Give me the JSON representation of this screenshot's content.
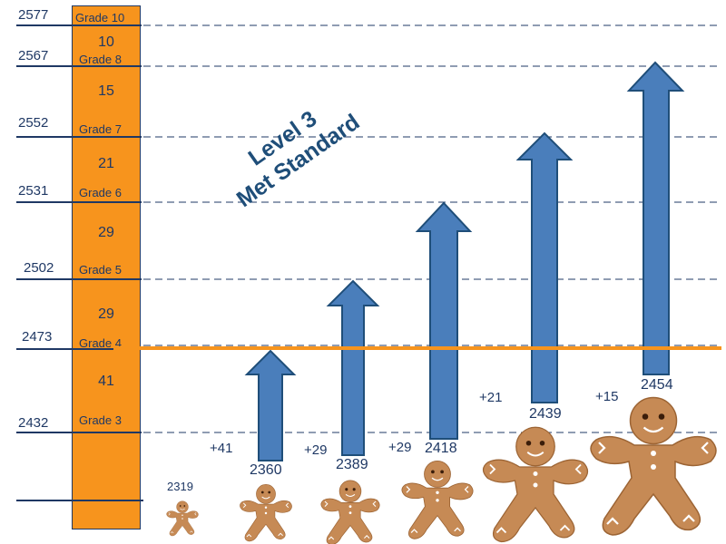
{
  "score_lines": [
    {
      "label": "2577",
      "grade": "Grade 10"
    },
    {
      "label": "2567",
      "grade": "Grade 8"
    },
    {
      "label": "2552",
      "grade": "Grade 7"
    },
    {
      "label": "2531",
      "grade": "Grade 6"
    },
    {
      "label": "2502",
      "grade": "Grade 5"
    },
    {
      "label": "2473",
      "grade": "Grade 4"
    },
    {
      "label": "2432",
      "grade": "Grade 3"
    }
  ],
  "band_numbers": [
    "10",
    "15",
    "21",
    "29",
    "29",
    "41"
  ],
  "level_text": {
    "line1": "Level 3",
    "line2": "Met Standard"
  },
  "students": [
    {
      "score": "2319",
      "gain": ""
    },
    {
      "score": "2360",
      "gain": "+41"
    },
    {
      "score": "2389",
      "gain": "+29"
    },
    {
      "score": "2418",
      "gain": "+29"
    },
    {
      "score": "2439",
      "gain": "+21"
    },
    {
      "score": "2454",
      "gain": "+15"
    }
  ],
  "colors": {
    "orange": "#f7941d",
    "arrow_fill": "#4a7ebb",
    "arrow_stroke": "#1f4e79",
    "navy": "#1f3864",
    "cookie": "#c68a55"
  }
}
